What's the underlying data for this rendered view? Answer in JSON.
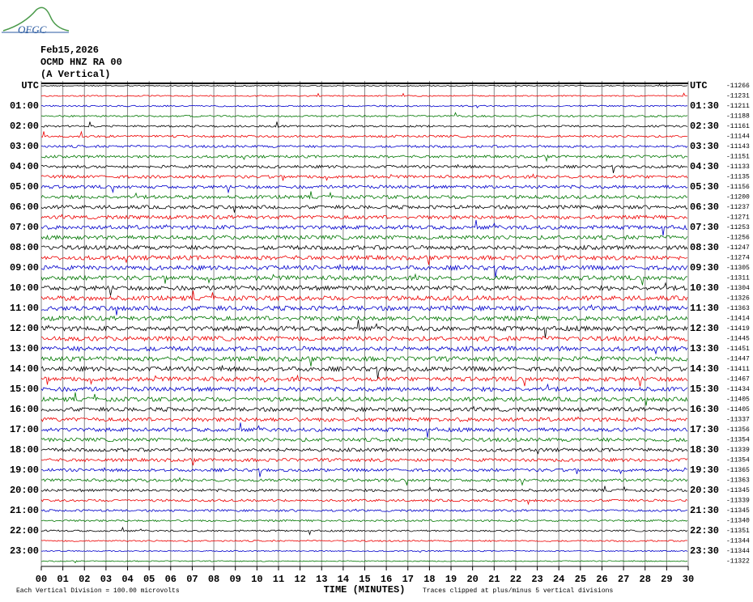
{
  "header": {
    "logo": "OFGC",
    "date": "Feb15,2026",
    "station": "OCMD HNZ RA 00",
    "component": "(A Vertical)"
  },
  "left_labels": [
    "UTC",
    "01:00",
    "02:00",
    "03:00",
    "04:00",
    "05:00",
    "06:00",
    "07:00",
    "08:00",
    "09:00",
    "10:00",
    "11:00",
    "12:00",
    "13:00",
    "14:00",
    "15:00",
    "16:00",
    "17:00",
    "18:00",
    "19:00",
    "20:00",
    "21:00",
    "22:00",
    "23:00"
  ],
  "right_labels": [
    "UTC",
    "01:30",
    "02:30",
    "03:30",
    "04:30",
    "05:30",
    "06:30",
    "07:30",
    "08:30",
    "09:30",
    "10:30",
    "11:30",
    "12:30",
    "13:30",
    "14:30",
    "15:30",
    "16:30",
    "17:30",
    "18:30",
    "19:30",
    "20:30",
    "21:30",
    "22:30",
    "23:30"
  ],
  "trace_offsets": [
    "-11266",
    "-11231",
    "-11211",
    "-11188",
    "-11161",
    "-11144",
    "-11143",
    "-11151",
    "-11133",
    "-11135",
    "-11156",
    "-11200",
    "-11237",
    "-11271",
    "-11253",
    "-11256",
    "-11247",
    "-11274",
    "-11305",
    "-11311",
    "-11304",
    "-11326",
    "-11363",
    "-11414",
    "-11419",
    "-11445",
    "-11451",
    "-11447",
    "-11411",
    "-11467",
    "-11434",
    "-11405",
    "-11405",
    "-11337",
    "-11356",
    "-11354",
    "-11339",
    "-11354",
    "-11365",
    "-11363",
    "-11345",
    "-11339",
    "-11345",
    "-11340",
    "-11351",
    "-11344",
    "-11344",
    "-11322"
  ],
  "x_axis": {
    "labels": [
      "00",
      "01",
      "02",
      "03",
      "04",
      "05",
      "06",
      "07",
      "08",
      "09",
      "10",
      "11",
      "12",
      "13",
      "14",
      "15",
      "16",
      "17",
      "18",
      "19",
      "20",
      "21",
      "22",
      "23",
      "24",
      "25",
      "26",
      "27",
      "28",
      "29",
      "30"
    ],
    "title": "TIME (MINUTES)"
  },
  "footer": {
    "division": "Each Vertical Division =  100.00 microvolts",
    "clip": "Traces clipped at plus/minus 5 vertical divisions"
  }
}
